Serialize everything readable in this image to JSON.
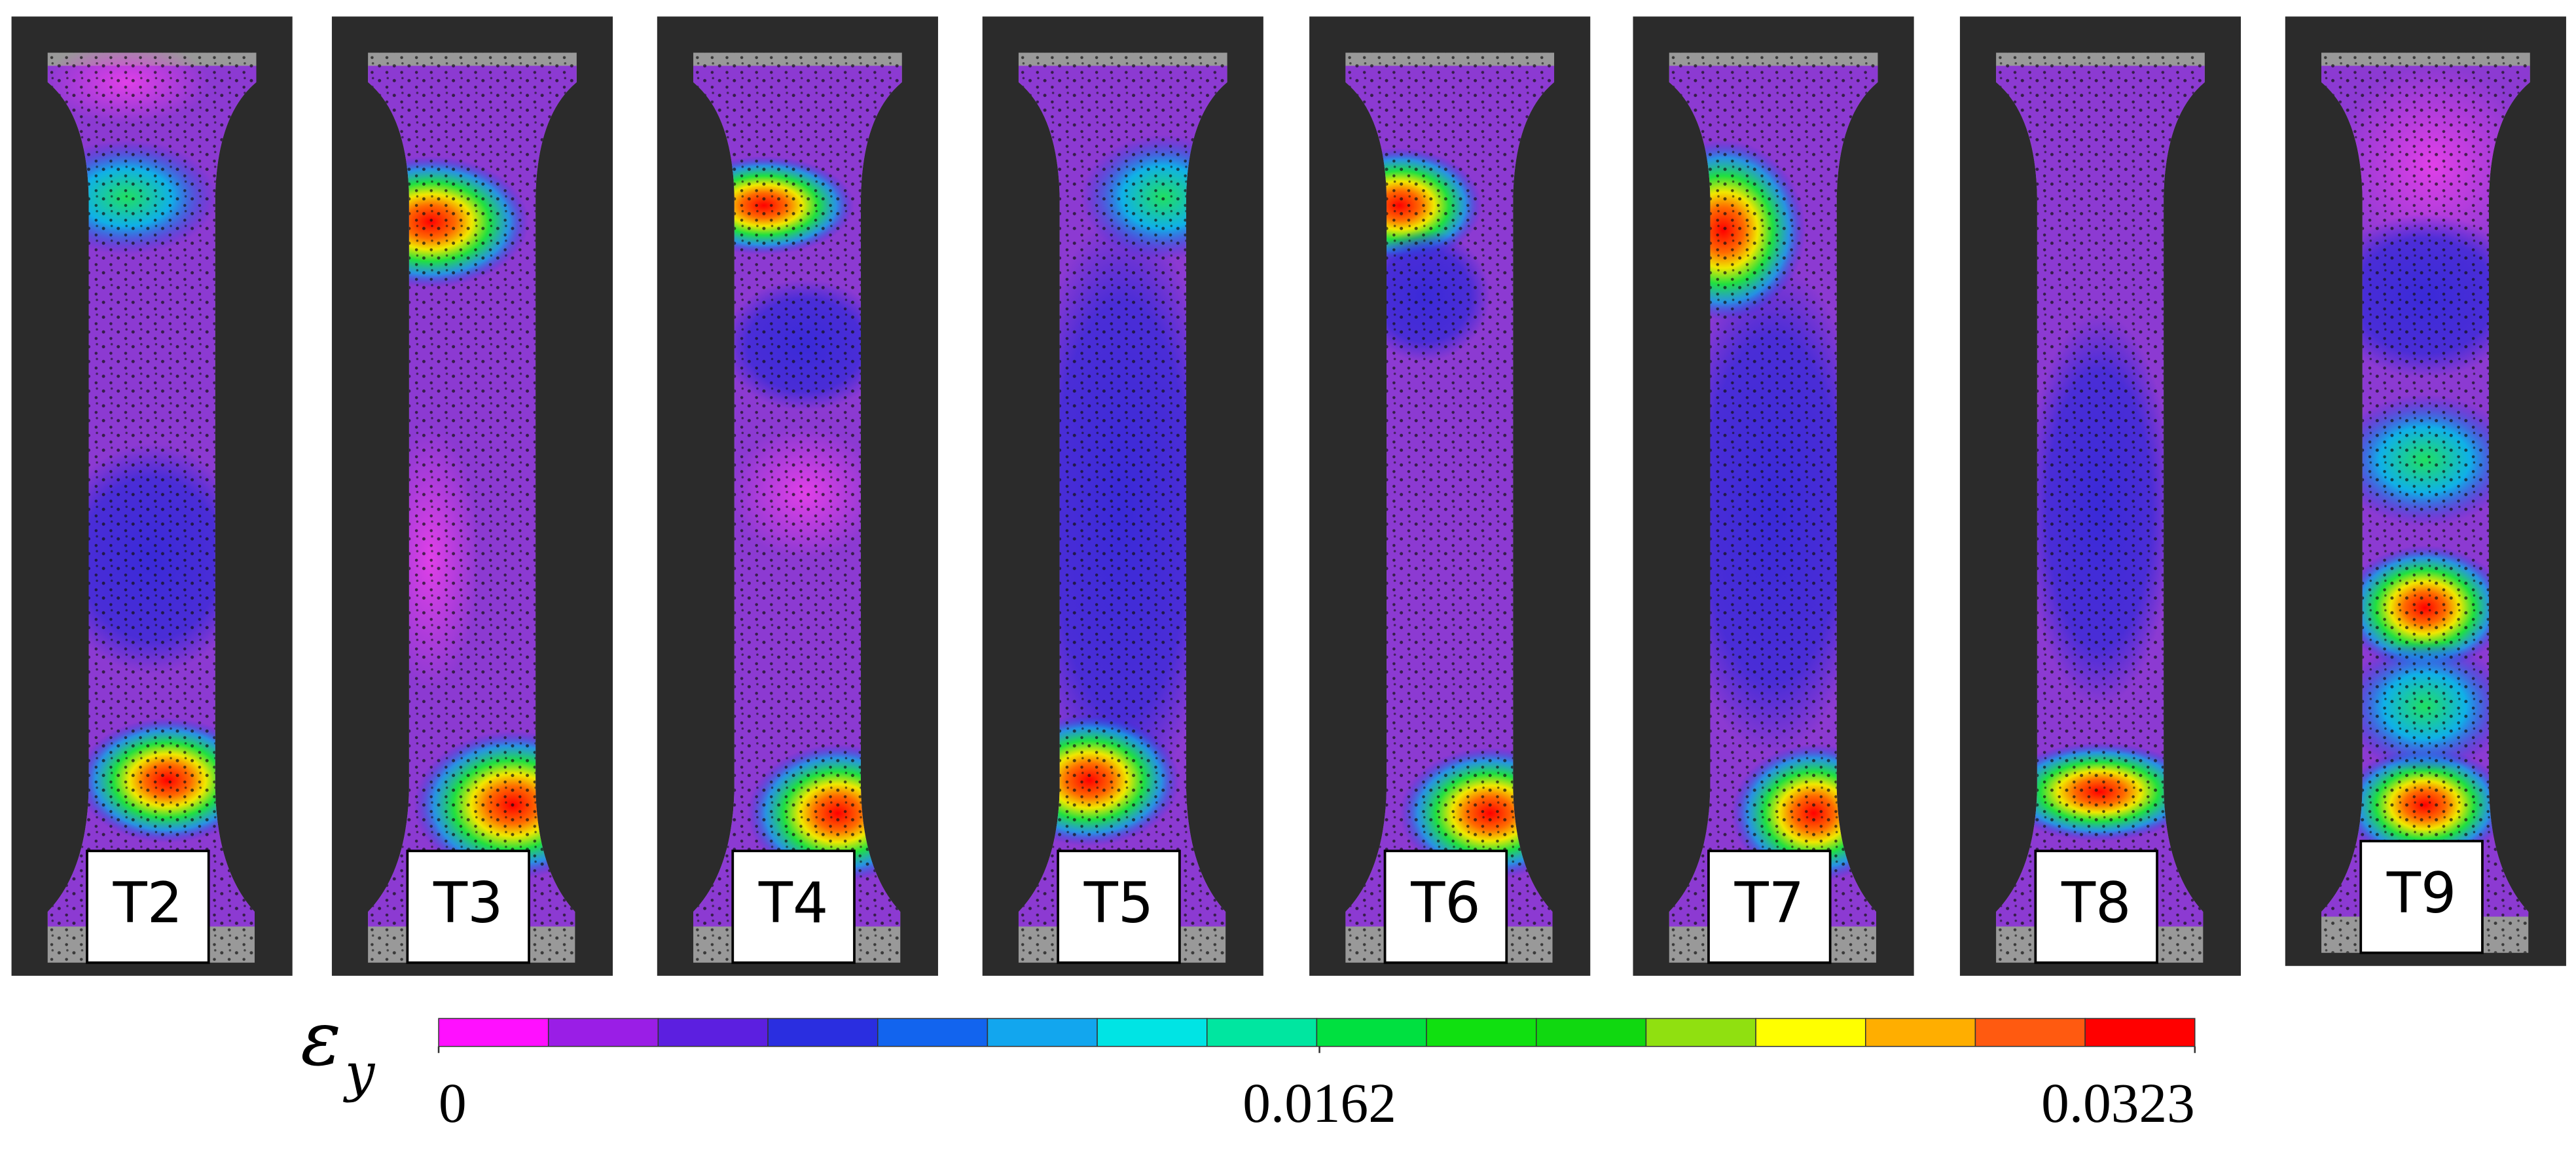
{
  "panels": [
    {
      "label": "T2"
    },
    {
      "label": "T3"
    },
    {
      "label": "T4"
    },
    {
      "label": "T5"
    },
    {
      "label": "T6"
    },
    {
      "label": "T7"
    },
    {
      "label": "T8"
    },
    {
      "label": "T9"
    }
  ],
  "colorbar": {
    "symbol": "ε",
    "subscript": "y",
    "lim": [
      0,
      0.0323
    ],
    "ticks": [
      0,
      0.0162,
      0.0323
    ],
    "colors": [
      "#ff10ff",
      "#9a1ee6",
      "#5c1fe0",
      "#2a2ee0",
      "#1264ee",
      "#12a6ee",
      "#00e4e4",
      "#00e6a0",
      "#00e040",
      "#10e010",
      "#10d810",
      "#90e010",
      "#ffff00",
      "#ffae00",
      "#ff5a10",
      "#ff0000"
    ]
  }
}
